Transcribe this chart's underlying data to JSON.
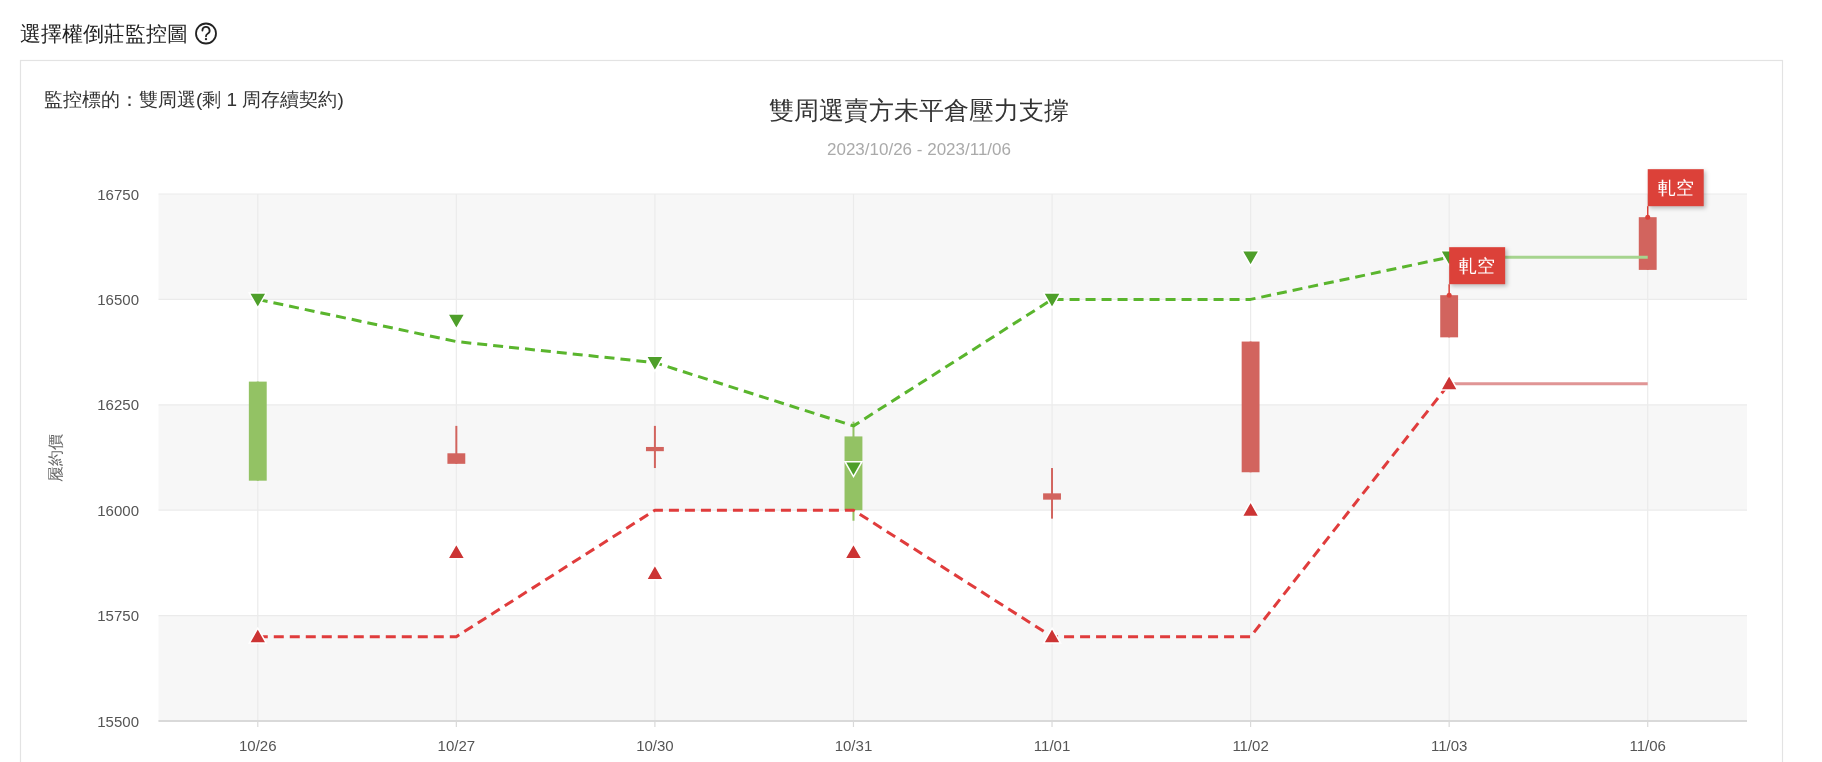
{
  "chart_data": {
    "type": "candlestick",
    "title": "雙周選賣方未平倉壓力支撐",
    "subtitle": "2023/10/26 - 2023/11/06",
    "ylabel": "履約價",
    "categories": [
      "10/26",
      "10/27",
      "10/30",
      "10/31",
      "11/01",
      "11/02",
      "11/03",
      "11/06"
    ],
    "ohlc": [
      [
        16305,
        16305,
        16070,
        16070
      ],
      [
        16110,
        16200,
        16110,
        16135
      ],
      [
        16140,
        16200,
        16100,
        16150
      ],
      [
        16175,
        16210,
        15975,
        16000
      ],
      [
        16025,
        16100,
        15980,
        16040
      ],
      [
        16090,
        16400,
        16090,
        16400
      ],
      [
        16410,
        16510,
        16410,
        16510
      ],
      [
        16570,
        16695,
        16570,
        16695
      ]
    ],
    "colors": [
      "#93c264",
      "#d2645e",
      "#d2645e",
      "#93c264",
      "#d2645e",
      "#d2645e",
      "#d2645e",
      "#d2645e"
    ],
    "ylim": [
      15500,
      16750
    ],
    "yticks": [
      15500,
      15750,
      16000,
      16250,
      16500,
      16750
    ],
    "grid": true,
    "bands": [
      {
        "axis": "y",
        "from": 15500,
        "to": 15750,
        "color": "#f7f7f7"
      },
      {
        "axis": "y",
        "from": 16000,
        "to": 16250,
        "color": "#f7f7f7"
      },
      {
        "axis": "y",
        "from": 16500,
        "to": 16750,
        "color": "#f7f7f7"
      }
    ],
    "series": [
      {
        "type": "line",
        "color": "#5ab52d",
        "line_style": "dashed",
        "values": [
          16500,
          16400,
          16350,
          16200,
          16500,
          16500,
          16600,
          null
        ]
      },
      {
        "type": "line",
        "color": "#e03c3c",
        "line_style": "dashed",
        "values": [
          15700,
          15700,
          16000,
          16000,
          15700,
          15700,
          16300,
          null
        ]
      },
      {
        "type": "line",
        "color": "#a6d48f",
        "line_style": "solid",
        "values": [
          null,
          null,
          null,
          null,
          null,
          null,
          16600,
          16600
        ]
      },
      {
        "type": "line",
        "color": "#e09595",
        "line_style": "solid",
        "values": [
          null,
          null,
          null,
          null,
          null,
          null,
          16300,
          16300
        ]
      },
      {
        "type": "scatter",
        "color": "#4e9f2a",
        "marker": "triangle-down",
        "values": [
          16500,
          16450,
          16350,
          16100,
          16500,
          16600,
          16600,
          null
        ]
      },
      {
        "type": "scatter",
        "color": "#cc3434",
        "marker": "triangle",
        "values": [
          15700,
          15900,
          15850,
          15900,
          15700,
          16000,
          16300,
          null
        ]
      }
    ],
    "annotations": [
      "選擇權倒莊監控圖",
      "監控標的：雙周選(剩 1 周存續契約)",
      {
        "text": "軋空",
        "x": "11/03",
        "y": 16510
      },
      {
        "text": "軋空",
        "x": "11/06",
        "y": 16695
      }
    ]
  }
}
